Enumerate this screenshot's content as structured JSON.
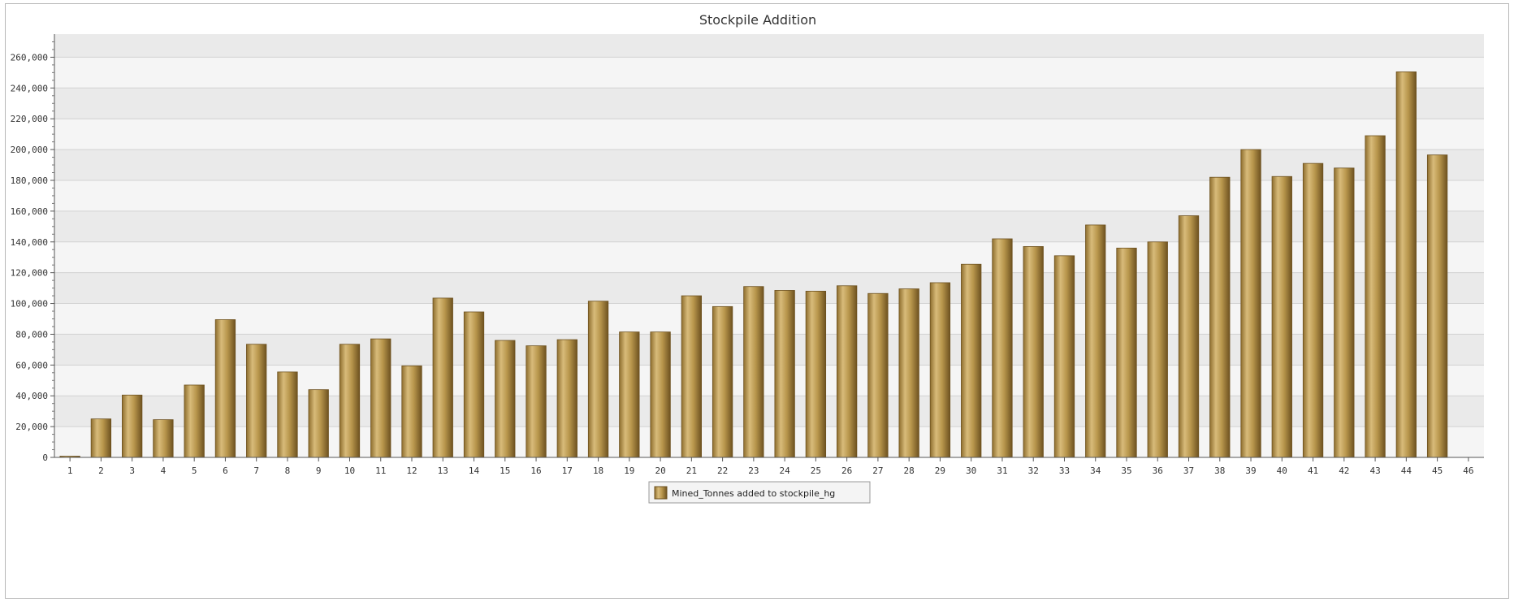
{
  "chart_data": {
    "type": "bar",
    "title": "Stockpile Addition",
    "xlabel": "",
    "ylabel": "",
    "categories": [
      "1",
      "2",
      "3",
      "4",
      "5",
      "6",
      "7",
      "8",
      "9",
      "10",
      "11",
      "12",
      "13",
      "14",
      "15",
      "16",
      "17",
      "18",
      "19",
      "20",
      "21",
      "22",
      "23",
      "24",
      "25",
      "26",
      "27",
      "28",
      "29",
      "30",
      "31",
      "32",
      "33",
      "34",
      "35",
      "36",
      "37",
      "38",
      "39",
      "40",
      "41",
      "42",
      "43",
      "44",
      "45",
      "46"
    ],
    "series": [
      {
        "name": "Mined_Tonnes added to stockpile_hg",
        "values": [
          800,
          25000,
          40500,
          24500,
          47000,
          89500,
          73500,
          55500,
          44000,
          73500,
          77000,
          59500,
          103500,
          94500,
          76000,
          72500,
          76500,
          101500,
          81500,
          81500,
          105000,
          98000,
          111000,
          108500,
          108000,
          111500,
          106500,
          109500,
          113500,
          125500,
          142000,
          137000,
          131000,
          151000,
          136000,
          140000,
          157000,
          182000,
          200000,
          182500,
          191000,
          188000,
          209000,
          250500,
          196500,
          null
        ],
        "color": "#b8964c"
      }
    ],
    "ylim": [
      0,
      275000
    ],
    "yticks": [
      "0",
      "20,000",
      "40,000",
      "60,000",
      "80,000",
      "100,000",
      "120,000",
      "140,000",
      "160,000",
      "180,000",
      "200,000",
      "220,000",
      "240,000",
      "260,000"
    ],
    "grid": true,
    "legend_position": "bottom-center"
  }
}
